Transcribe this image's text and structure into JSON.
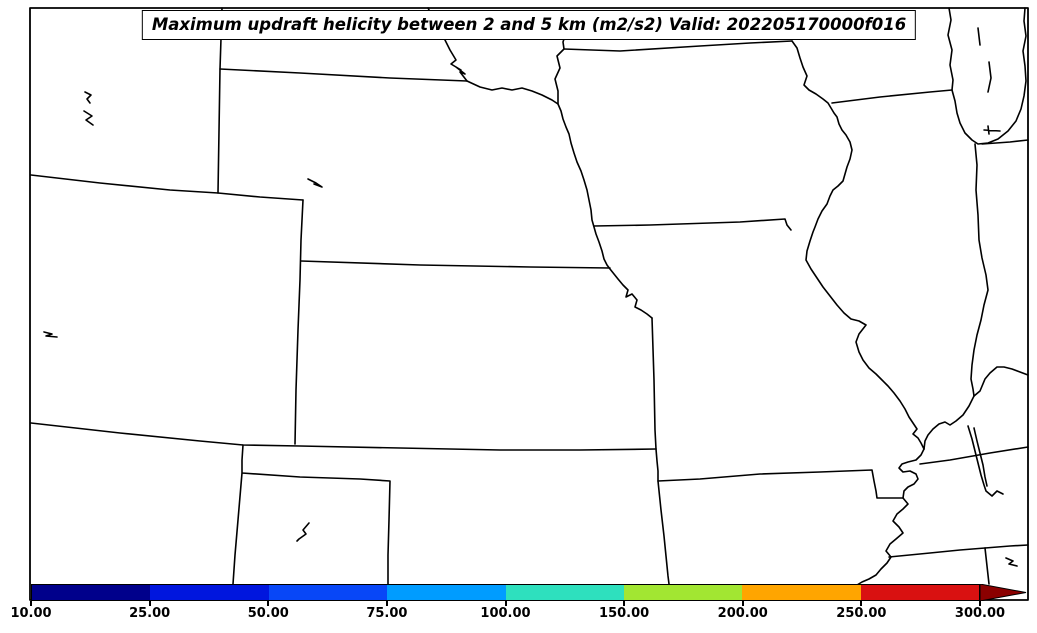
{
  "figure": {
    "title": "Maximum updraft helicity between 2 and 5 km (m2/s2) Valid: 202205170000f016"
  },
  "colorbar": {
    "units": "m2/s2",
    "orientation": "horizontal",
    "tick_labels": [
      "10.00",
      "25.00",
      "50.00",
      "75.00",
      "100.00",
      "150.00",
      "200.00",
      "250.00",
      "300.00"
    ],
    "tick_values": [
      10,
      25,
      50,
      75,
      100,
      150,
      200,
      250,
      300
    ],
    "segment_colors": [
      "#00008B",
      "#0016DE",
      "#0847F7",
      "#009CFF",
      "#2EE0BE",
      "#A2E632",
      "#FFA500",
      "#D91111"
    ],
    "extend_max_color": "#8B0000",
    "outline_color": "#000000"
  },
  "map": {
    "background_color": "#FFFFFF",
    "line_color": "#000000",
    "region": "Central United States",
    "features": [
      "state-boundaries",
      "missouri-river",
      "big-sioux-river",
      "mississippi-river",
      "wabash-river",
      "ohio-river",
      "lake-michigan",
      "kentucky-lakes",
      "small-lakes"
    ]
  }
}
